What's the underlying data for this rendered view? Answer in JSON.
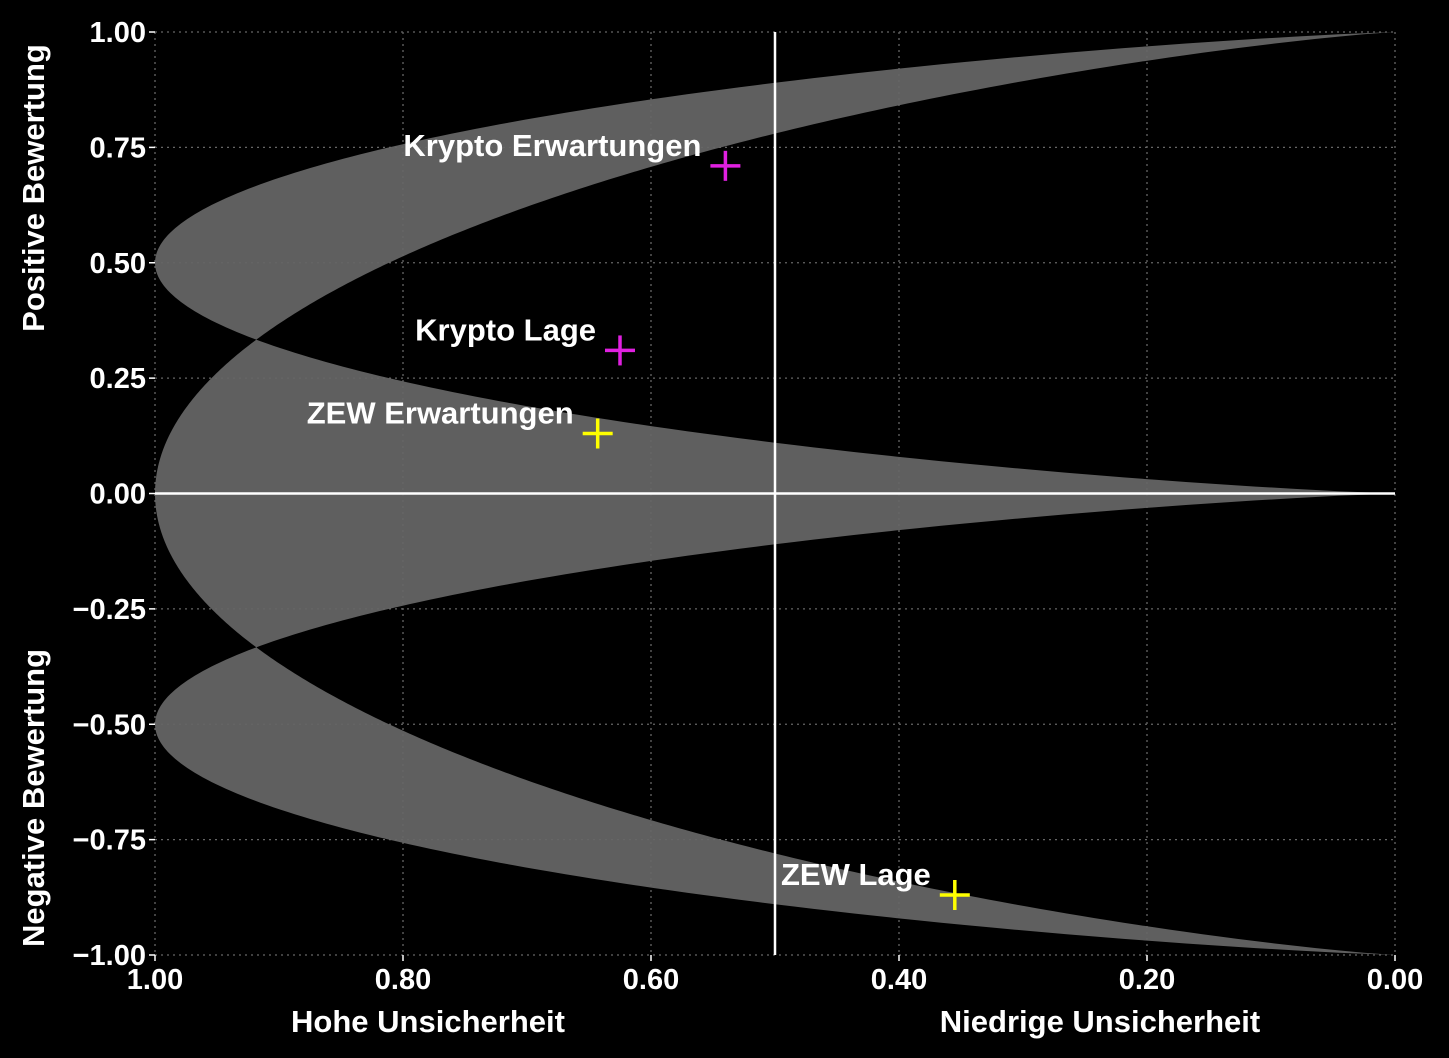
{
  "chart_data": {
    "type": "scatter",
    "title": "",
    "xlim": [
      1.0,
      0.0
    ],
    "ylim": [
      -1.0,
      1.0
    ],
    "x_reversed": true,
    "grid": true,
    "x_ticks": [
      1.0,
      0.8,
      0.6,
      0.4,
      0.2,
      0.0
    ],
    "x_tick_labels": [
      "1.00",
      "0.80",
      "0.60",
      "0.40",
      "0.20",
      "0.00"
    ],
    "y_ticks": [
      1.0,
      0.75,
      0.5,
      0.25,
      0.0,
      -0.25,
      -0.5,
      -0.75,
      -1.0
    ],
    "y_tick_labels": [
      "1.00",
      "0.75",
      "0.50",
      "0.25",
      "0.00",
      "−0.25",
      "−0.50",
      "−0.75",
      "−1.00"
    ],
    "x_axis_titles": {
      "left": "Hohe Unsicherheit",
      "right": "Niedrige Unsicherheit"
    },
    "y_axis_titles": {
      "top": "Positive Bewertung",
      "bottom": "Negative Bewertung"
    },
    "reference_lines": {
      "x": 0.5,
      "y": 0.0
    },
    "region_color": "#5f5f5f",
    "background_color": "#000000",
    "grid_color": "#666666",
    "points": [
      {
        "label": "Krypto Erwartungen",
        "x": 0.54,
        "y": 0.71,
        "color": "#e020e0"
      },
      {
        "label": "Krypto Lage",
        "x": 0.625,
        "y": 0.31,
        "color": "#e020e0"
      },
      {
        "label": "ZEW Erwartungen",
        "x": 0.643,
        "y": 0.13,
        "color": "#ffff00"
      },
      {
        "label": "ZEW Lage",
        "x": 0.355,
        "y": -0.87,
        "color": "#ffff00"
      }
    ]
  }
}
